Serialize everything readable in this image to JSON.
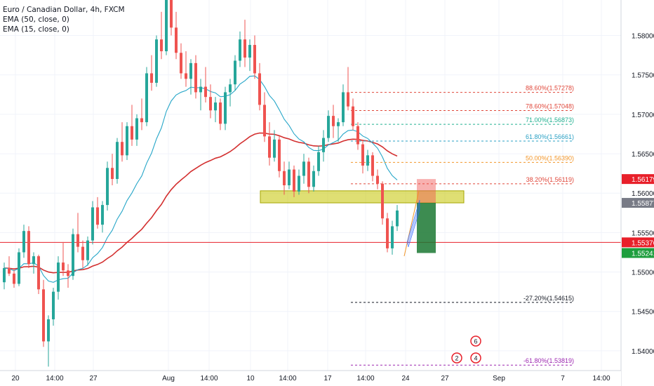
{
  "legend": {
    "symbol": "Euro / Canadian Dollar, 4h, FXCM",
    "ema50": "EMA (50, close, 0)",
    "ema15": "EMA (15, close, 0)"
  },
  "chart_data": {
    "type": "candlestick",
    "symbol": "EUR/CAD",
    "timeframe": "4h",
    "y_range": [
      1.5375,
      1.5845
    ],
    "y_ticks": [
      "1.58000",
      "1.57500",
      "1.57000",
      "1.56500",
      "1.56000",
      "1.55500",
      "1.55000",
      "1.54500",
      "1.54000"
    ],
    "x_ticks": [
      "20",
      "14:00",
      "27",
      "Aug",
      "14:00",
      "10",
      "14:00",
      "17",
      "14:00",
      "24",
      "27",
      "Sep",
      "7",
      "14:00"
    ],
    "price_labels": [
      {
        "value": "1.56179",
        "color": "#e8202a"
      },
      {
        "value": "1.55877",
        "color": "#787b86"
      },
      {
        "value": "1.55376",
        "color": "#e8202a"
      },
      {
        "value": "1.55241",
        "color": "#1e9e3e"
      }
    ],
    "fib_levels": [
      {
        "label": "88.60%(1.57278)",
        "value": 1.57278,
        "color": "#e0473a"
      },
      {
        "label": "78.60%(1.57048)",
        "value": 1.57048,
        "color": "#e0473a"
      },
      {
        "label": "71.00%(1.56873)",
        "value": 1.56873,
        "color": "#20b090"
      },
      {
        "label": "61.80%(1.56661)",
        "value": 1.56661,
        "color": "#2ba1c4"
      },
      {
        "label": "50.00%(1.56390)",
        "value": 1.5639,
        "color": "#f2962a"
      },
      {
        "label": "38.20%(1.56119)",
        "value": 1.56119,
        "color": "#e0473a"
      },
      {
        "label": "-27.20%(1.54615)",
        "value": 1.54615,
        "color": "#131722"
      },
      {
        "label": "-61.80%(1.53819)",
        "value": 1.53819,
        "color": "#9c27b0"
      }
    ],
    "horizontal_line": 1.55376,
    "zone": [
      1.55877,
      1.5603
    ],
    "position": {
      "entry": 1.55877,
      "stop": 1.56179,
      "target": 1.55241
    },
    "events": [
      "2",
      "6",
      "4"
    ],
    "candles": [
      [
        1.5487,
        1.5512,
        1.5478,
        1.5505
      ],
      [
        1.5505,
        1.552,
        1.5495,
        1.5498
      ],
      [
        1.5498,
        1.5503,
        1.548,
        1.5485
      ],
      [
        1.5485,
        1.553,
        1.5482,
        1.5525
      ],
      [
        1.5525,
        1.556,
        1.5518,
        1.5552
      ],
      [
        1.5552,
        1.5558,
        1.5505,
        1.551
      ],
      [
        1.551,
        1.5525,
        1.5498,
        1.552
      ],
      [
        1.552,
        1.5522,
        1.5472,
        1.5478
      ],
      [
        1.5478,
        1.549,
        1.5405,
        1.5412
      ],
      [
        1.5412,
        1.5445,
        1.538,
        1.544
      ],
      [
        1.544,
        1.548,
        1.5432,
        1.5475
      ],
      [
        1.5475,
        1.552,
        1.5465,
        1.5512
      ],
      [
        1.5512,
        1.5538,
        1.5495,
        1.5502
      ],
      [
        1.5502,
        1.551,
        1.548,
        1.5495
      ],
      [
        1.5495,
        1.5555,
        1.549,
        1.5548
      ],
      [
        1.5548,
        1.5575,
        1.5525,
        1.5532
      ],
      [
        1.5532,
        1.554,
        1.5505,
        1.5515
      ],
      [
        1.5515,
        1.5545,
        1.5508,
        1.554
      ],
      [
        1.554,
        1.559,
        1.5535,
        1.5582
      ],
      [
        1.5582,
        1.5595,
        1.5555,
        1.556
      ],
      [
        1.556,
        1.559,
        1.555,
        1.5585
      ],
      [
        1.5585,
        1.564,
        1.5578,
        1.5632
      ],
      [
        1.5632,
        1.565,
        1.561,
        1.5618
      ],
      [
        1.5618,
        1.567,
        1.5612,
        1.5665
      ],
      [
        1.5665,
        1.569,
        1.564,
        1.5648
      ],
      [
        1.5648,
        1.569,
        1.5642,
        1.5685
      ],
      [
        1.5685,
        1.5712,
        1.566,
        1.5668
      ],
      [
        1.5668,
        1.57,
        1.566,
        1.5695
      ],
      [
        1.5695,
        1.572,
        1.568,
        1.569
      ],
      [
        1.569,
        1.576,
        1.5685,
        1.5752
      ],
      [
        1.5752,
        1.5775,
        1.573,
        1.574
      ],
      [
        1.574,
        1.58,
        1.5735,
        1.5795
      ],
      [
        1.5795,
        1.583,
        1.577,
        1.578
      ],
      [
        1.578,
        1.586,
        1.5775,
        1.585
      ],
      [
        1.585,
        1.5865,
        1.58,
        1.581
      ],
      [
        1.581,
        1.583,
        1.577,
        1.5778
      ],
      [
        1.5778,
        1.579,
        1.5745,
        1.5752
      ],
      [
        1.5752,
        1.578,
        1.5735,
        1.5745
      ],
      [
        1.5745,
        1.577,
        1.5725,
        1.5765
      ],
      [
        1.5765,
        1.5775,
        1.572,
        1.5728
      ],
      [
        1.5728,
        1.5745,
        1.5705,
        1.5735
      ],
      [
        1.5735,
        1.576,
        1.5715,
        1.5722
      ],
      [
        1.5722,
        1.5738,
        1.5695,
        1.5705
      ],
      [
        1.5705,
        1.5722,
        1.569,
        1.5715
      ],
      [
        1.5715,
        1.572,
        1.568,
        1.5688
      ],
      [
        1.5688,
        1.5735,
        1.568,
        1.5728
      ],
      [
        1.5728,
        1.5745,
        1.571,
        1.5738
      ],
      [
        1.5738,
        1.5775,
        1.573,
        1.5768
      ],
      [
        1.5768,
        1.5805,
        1.576,
        1.5795
      ],
      [
        1.5795,
        1.582,
        1.576,
        1.5772
      ],
      [
        1.5772,
        1.5795,
        1.5755,
        1.5788
      ],
      [
        1.5788,
        1.58,
        1.5745,
        1.5752
      ],
      [
        1.5752,
        1.5765,
        1.5705,
        1.5712
      ],
      [
        1.5712,
        1.5728,
        1.5665,
        1.5672
      ],
      [
        1.5672,
        1.569,
        1.5635,
        1.5645
      ],
      [
        1.5645,
        1.568,
        1.564,
        1.5668
      ],
      [
        1.5668,
        1.5672,
        1.562,
        1.5628
      ],
      [
        1.5628,
        1.564,
        1.5598,
        1.561
      ],
      [
        1.561,
        1.564,
        1.5605,
        1.563
      ],
      [
        1.563,
        1.5635,
        1.5595,
        1.5602
      ],
      [
        1.5602,
        1.563,
        1.5598,
        1.5622
      ],
      [
        1.5622,
        1.565,
        1.5612,
        1.564
      ],
      [
        1.564,
        1.5645,
        1.56,
        1.5608
      ],
      [
        1.5608,
        1.5635,
        1.5602,
        1.5628
      ],
      [
        1.5628,
        1.566,
        1.5622,
        1.5652
      ],
      [
        1.5652,
        1.568,
        1.564,
        1.567
      ],
      [
        1.567,
        1.5705,
        1.5665,
        1.5698
      ],
      [
        1.5698,
        1.5712,
        1.567,
        1.5685
      ],
      [
        1.5685,
        1.5695,
        1.5665,
        1.569
      ],
      [
        1.569,
        1.5738,
        1.5685,
        1.5728
      ],
      [
        1.5728,
        1.576,
        1.5705,
        1.571
      ],
      [
        1.571,
        1.572,
        1.568,
        1.5685
      ],
      [
        1.5685,
        1.569,
        1.5655,
        1.5662
      ],
      [
        1.5662,
        1.5668,
        1.5625,
        1.5635
      ],
      [
        1.5635,
        1.5655,
        1.5628,
        1.5648
      ],
      [
        1.5648,
        1.5652,
        1.5615,
        1.5622
      ],
      [
        1.5622,
        1.563,
        1.5605,
        1.5612
      ],
      [
        1.5612,
        1.5615,
        1.556,
        1.5568
      ],
      [
        1.5568,
        1.5575,
        1.5525,
        1.553
      ],
      [
        1.553,
        1.5565,
        1.5522,
        1.5558
      ],
      [
        1.5558,
        1.5585,
        1.5552,
        1.5578
      ]
    ]
  }
}
